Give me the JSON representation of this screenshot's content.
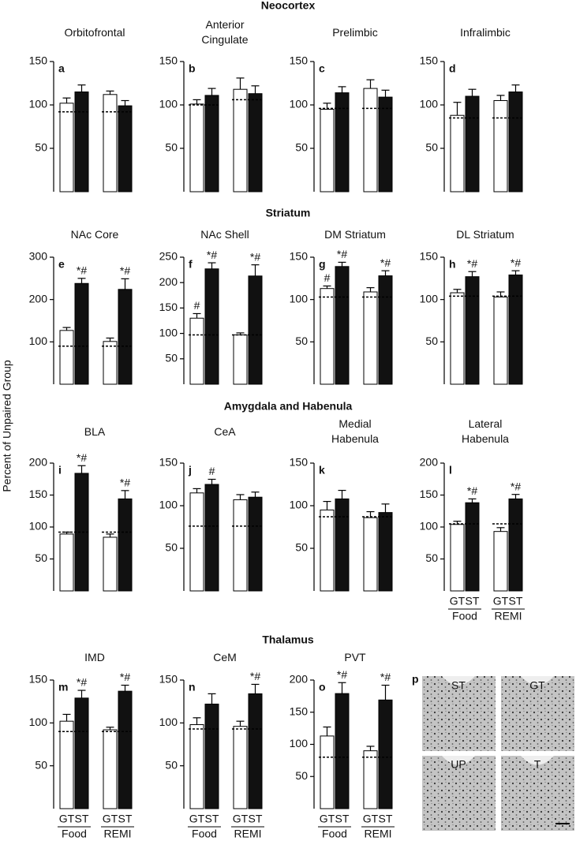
{
  "y_axis_label": "Percent of Unpaired Group",
  "sections": [
    "Neocortex",
    "Striatum",
    "Amygdala and Habenula",
    "Thalamus"
  ],
  "chart_data": [
    {
      "type": "bar",
      "letter": "a",
      "title": "Orbitofrontal",
      "ylim": [
        0,
        150
      ],
      "yticks": [
        50,
        100,
        150
      ],
      "categories": [
        null,
        null
      ],
      "unpaired": [
        92,
        92
      ],
      "series": [
        {
          "name": null,
          "color": "#ffffff",
          "values": [
            102,
            112
          ],
          "errors": [
            6,
            4
          ],
          "annotations": [
            null,
            null
          ]
        },
        {
          "name": null,
          "color": "#111111",
          "values": [
            115,
            99
          ],
          "errors": [
            8,
            6
          ],
          "annotations": [
            null,
            null
          ]
        }
      ]
    },
    {
      "type": "bar",
      "letter": "b",
      "title": "Anterior Cingulate",
      "ylim": [
        0,
        150
      ],
      "yticks": [
        50,
        100,
        150
      ],
      "categories": [
        null,
        null
      ],
      "unpaired": [
        100,
        106
      ],
      "series": [
        {
          "name": null,
          "color": "#ffffff",
          "values": [
            101,
            118
          ],
          "errors": [
            5,
            13
          ],
          "annotations": [
            null,
            null
          ]
        },
        {
          "name": null,
          "color": "#111111",
          "values": [
            111,
            113
          ],
          "errors": [
            8,
            9
          ],
          "annotations": [
            null,
            null
          ]
        }
      ]
    },
    {
      "type": "bar",
      "letter": "c",
      "title": "Prelimbic",
      "ylim": [
        0,
        150
      ],
      "yticks": [
        50,
        100,
        150
      ],
      "categories": [
        null,
        null
      ],
      "unpaired": [
        96,
        96
      ],
      "series": [
        {
          "name": null,
          "color": "#ffffff",
          "values": [
            95,
            119
          ],
          "errors": [
            7,
            10
          ],
          "annotations": [
            null,
            null
          ]
        },
        {
          "name": null,
          "color": "#111111",
          "values": [
            114,
            109
          ],
          "errors": [
            7,
            8
          ],
          "annotations": [
            null,
            null
          ]
        }
      ]
    },
    {
      "type": "bar",
      "letter": "d",
      "title": "Infralimbic",
      "ylim": [
        0,
        150
      ],
      "yticks": [
        50,
        100,
        150
      ],
      "categories": [
        null,
        null
      ],
      "unpaired": [
        85,
        85
      ],
      "series": [
        {
          "name": null,
          "color": "#ffffff",
          "values": [
            88,
            105
          ],
          "errors": [
            15,
            6
          ],
          "annotations": [
            null,
            null
          ]
        },
        {
          "name": null,
          "color": "#111111",
          "values": [
            110,
            115
          ],
          "errors": [
            8,
            8
          ],
          "annotations": [
            null,
            null
          ]
        }
      ]
    },
    {
      "type": "bar",
      "letter": "e",
      "title": "NAc Core",
      "ylim": [
        0,
        300
      ],
      "yticks": [
        100,
        200,
        300
      ],
      "categories": [
        null,
        null
      ],
      "unpaired": [
        90,
        90
      ],
      "series": [
        {
          "name": null,
          "color": "#ffffff",
          "values": [
            127,
            101
          ],
          "errors": [
            7,
            8
          ],
          "annotations": [
            null,
            null
          ]
        },
        {
          "name": null,
          "color": "#111111",
          "values": [
            238,
            224
          ],
          "errors": [
            12,
            25
          ],
          "annotations": [
            "*#",
            "*#"
          ]
        }
      ]
    },
    {
      "type": "bar",
      "letter": "f",
      "title": "NAc Shell",
      "ylim": [
        0,
        250
      ],
      "yticks": [
        50,
        100,
        150,
        200,
        250
      ],
      "categories": [
        null,
        null
      ],
      "unpaired": [
        97,
        97
      ],
      "series": [
        {
          "name": null,
          "color": "#ffffff",
          "values": [
            130,
            97
          ],
          "errors": [
            9,
            4
          ],
          "annotations": [
            "#",
            null
          ]
        },
        {
          "name": null,
          "color": "#111111",
          "values": [
            227,
            213
          ],
          "errors": [
            12,
            22
          ],
          "annotations": [
            "*#",
            "*#"
          ]
        }
      ]
    },
    {
      "type": "bar",
      "letter": "g",
      "title": "DM Striatum",
      "ylim": [
        0,
        150
      ],
      "yticks": [
        50,
        100,
        150
      ],
      "categories": [
        null,
        null
      ],
      "unpaired": [
        103,
        103
      ],
      "series": [
        {
          "name": null,
          "color": "#ffffff",
          "values": [
            113,
            109
          ],
          "errors": [
            3,
            5
          ],
          "annotations": [
            "#",
            null
          ]
        },
        {
          "name": null,
          "color": "#111111",
          "values": [
            139,
            128
          ],
          "errors": [
            5,
            6
          ],
          "annotations": [
            "*#",
            "*#"
          ]
        }
      ]
    },
    {
      "type": "bar",
      "letter": "h",
      "title": "DL Striatum",
      "ylim": [
        0,
        150
      ],
      "yticks": [
        50,
        100,
        150
      ],
      "categories": [
        null,
        null
      ],
      "unpaired": [
        104,
        104
      ],
      "series": [
        {
          "name": null,
          "color": "#ffffff",
          "values": [
            108,
            103
          ],
          "errors": [
            4,
            6
          ],
          "annotations": [
            null,
            null
          ]
        },
        {
          "name": null,
          "color": "#111111",
          "values": [
            127,
            129
          ],
          "errors": [
            6,
            5
          ],
          "annotations": [
            "*#",
            "*#"
          ]
        }
      ]
    },
    {
      "type": "bar",
      "letter": "i",
      "title": "BLA",
      "ylim": [
        0,
        200
      ],
      "yticks": [
        50,
        100,
        150,
        200
      ],
      "categories": [
        null,
        null
      ],
      "unpaired": [
        92,
        92
      ],
      "series": [
        {
          "name": null,
          "color": "#ffffff",
          "values": [
            89,
            84
          ],
          "errors": [
            3,
            5
          ],
          "annotations": [
            null,
            null
          ]
        },
        {
          "name": null,
          "color": "#111111",
          "values": [
            184,
            144
          ],
          "errors": [
            12,
            13
          ],
          "annotations": [
            "*#",
            "*#"
          ]
        }
      ]
    },
    {
      "type": "bar",
      "letter": "j",
      "title": "CeA",
      "ylim": [
        0,
        150
      ],
      "yticks": [
        50,
        100,
        150
      ],
      "categories": [
        null,
        null
      ],
      "unpaired": [
        76,
        76
      ],
      "series": [
        {
          "name": null,
          "color": "#ffffff",
          "values": [
            115,
            107
          ],
          "errors": [
            5,
            6
          ],
          "annotations": [
            null,
            null
          ]
        },
        {
          "name": null,
          "color": "#111111",
          "values": [
            125,
            110
          ],
          "errors": [
            6,
            6
          ],
          "annotations": [
            "#",
            null
          ]
        }
      ]
    },
    {
      "type": "bar",
      "letter": "k",
      "title": "Medial Habenula",
      "ylim": [
        0,
        150
      ],
      "yticks": [
        50,
        100,
        150
      ],
      "categories": [
        null,
        null
      ],
      "unpaired": [
        87,
        87
      ],
      "series": [
        {
          "name": null,
          "color": "#ffffff",
          "values": [
            95,
            86
          ],
          "errors": [
            10,
            7
          ],
          "annotations": [
            null,
            null
          ]
        },
        {
          "name": null,
          "color": "#111111",
          "values": [
            108,
            92
          ],
          "errors": [
            10,
            10
          ],
          "annotations": [
            null,
            null
          ]
        }
      ]
    },
    {
      "type": "bar",
      "letter": "l",
      "title": "Lateral Habenula",
      "ylim": [
        0,
        200
      ],
      "yticks": [
        50,
        100,
        150,
        200
      ],
      "categories": [
        "Food",
        "REMI"
      ],
      "unpaired": [
        105,
        105
      ],
      "series": [
        {
          "name": "GT",
          "color": "#ffffff",
          "values": [
            104,
            93
          ],
          "errors": [
            5,
            6
          ],
          "annotations": [
            null,
            null
          ]
        },
        {
          "name": "ST",
          "color": "#111111",
          "values": [
            138,
            144
          ],
          "errors": [
            6,
            7
          ],
          "annotations": [
            "*#",
            "*#"
          ]
        }
      ]
    },
    {
      "type": "bar",
      "letter": "m",
      "title": "IMD",
      "ylim": [
        0,
        150
      ],
      "yticks": [
        50,
        100,
        150
      ],
      "categories": [
        "Food",
        "REMI"
      ],
      "unpaired": [
        90,
        90
      ],
      "series": [
        {
          "name": "GT",
          "color": "#ffffff",
          "values": [
            102,
            92
          ],
          "errors": [
            8,
            3
          ],
          "annotations": [
            null,
            null
          ]
        },
        {
          "name": "ST",
          "color": "#111111",
          "values": [
            129,
            137
          ],
          "errors": [
            9,
            7
          ],
          "annotations": [
            "*#",
            "*#"
          ]
        }
      ]
    },
    {
      "type": "bar",
      "letter": "n",
      "title": "CeM",
      "ylim": [
        0,
        150
      ],
      "yticks": [
        50,
        100,
        150
      ],
      "categories": [
        "Food",
        "REMI"
      ],
      "unpaired": [
        93,
        93
      ],
      "series": [
        {
          "name": "GT",
          "color": "#ffffff",
          "values": [
            98,
            96
          ],
          "errors": [
            8,
            6
          ],
          "annotations": [
            null,
            null
          ]
        },
        {
          "name": "ST",
          "color": "#111111",
          "values": [
            122,
            134
          ],
          "errors": [
            12,
            11
          ],
          "annotations": [
            null,
            "*#"
          ]
        }
      ]
    },
    {
      "type": "bar",
      "letter": "o",
      "title": "PVT",
      "ylim": [
        0,
        200
      ],
      "yticks": [
        50,
        100,
        150,
        200
      ],
      "categories": [
        "Food",
        "REMI"
      ],
      "unpaired": [
        80,
        80
      ],
      "series": [
        {
          "name": "GT",
          "color": "#ffffff",
          "values": [
            113,
            90
          ],
          "errors": [
            14,
            7
          ],
          "annotations": [
            null,
            null
          ]
        },
        {
          "name": "ST",
          "color": "#111111",
          "values": [
            179,
            169
          ],
          "errors": [
            17,
            23
          ],
          "annotations": [
            "*#",
            "*#"
          ]
        }
      ]
    }
  ],
  "image_panel": {
    "letter": "p",
    "labels": [
      "ST",
      "GT",
      "UP",
      "T"
    ]
  }
}
